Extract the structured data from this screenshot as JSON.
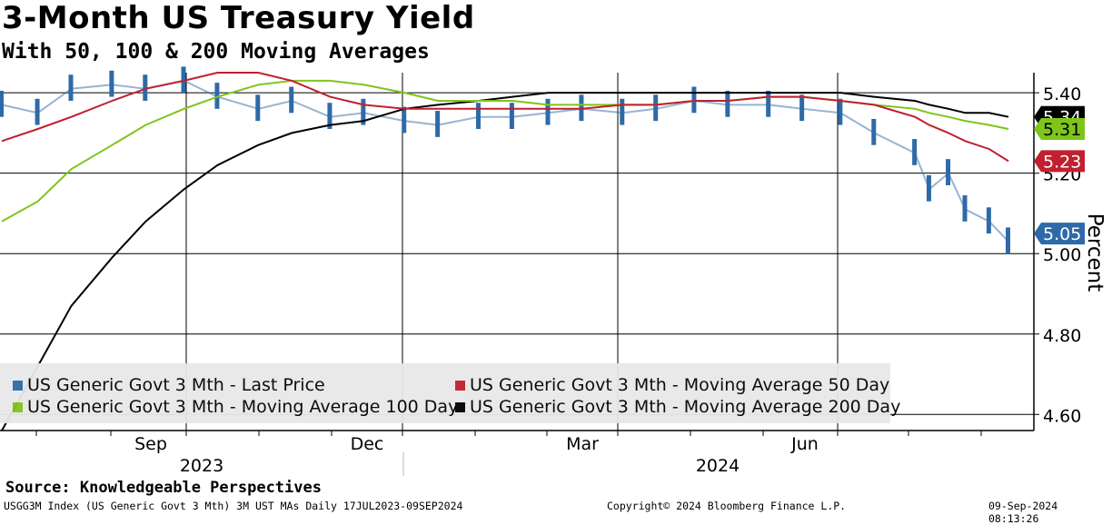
{
  "title": "3-Month US Treasury Yield",
  "subtitle": "With 50, 100 & 200 Moving Averages",
  "source": "Source: Knowledgeable Perspectives",
  "footer": {
    "left": "USGG3M Index (US Generic Govt 3 Mth) 3M UST MAs  Daily 17JUL2023-09SEP2024",
    "center": "Copyright© 2024 Bloomberg Finance L.P.",
    "right": "09-Sep-2024 08:13:26"
  },
  "colors": {
    "price": "#2e6aa8",
    "ma50": "#c0202f",
    "ma100": "#7ec51b",
    "ma200": "#000000"
  },
  "chart_data": {
    "type": "line",
    "ylabel": "Percent",
    "ylim": [
      4.56,
      5.45
    ],
    "yticks": [
      "4.60",
      "4.80",
      "5.00",
      "5.20",
      "5.40"
    ],
    "xticks": [
      "Sep",
      "Dec",
      "Mar",
      "Jun"
    ],
    "year_labels": [
      "2023",
      "2024"
    ],
    "grid": true,
    "legend_position": "bottom-left",
    "x": [
      "2023-07-17",
      "2023-08-01",
      "2023-08-15",
      "2023-09-01",
      "2023-09-15",
      "2023-10-01",
      "2023-10-15",
      "2023-11-01",
      "2023-11-15",
      "2023-12-01",
      "2023-12-15",
      "2024-01-01",
      "2024-01-15",
      "2024-02-01",
      "2024-02-15",
      "2024-03-01",
      "2024-03-15",
      "2024-04-01",
      "2024-04-15",
      "2024-05-01",
      "2024-05-15",
      "2024-06-01",
      "2024-06-15",
      "2024-07-01",
      "2024-07-15",
      "2024-08-01",
      "2024-08-07",
      "2024-08-15",
      "2024-08-22",
      "2024-09-01",
      "2024-09-09"
    ],
    "series": [
      {
        "name": "US Generic Govt 3 Mth - Last Price",
        "style": "bars",
        "values": [
          5.39,
          5.37,
          5.43,
          5.44,
          5.43,
          5.45,
          5.41,
          5.38,
          5.4,
          5.36,
          5.37,
          5.35,
          5.34,
          5.36,
          5.36,
          5.37,
          5.38,
          5.37,
          5.38,
          5.4,
          5.39,
          5.39,
          5.38,
          5.37,
          5.32,
          5.27,
          5.18,
          5.22,
          5.13,
          5.1,
          5.05
        ]
      },
      {
        "name": "US Generic Govt 3 Mth - Moving Average 50 Day",
        "values": [
          5.28,
          5.31,
          5.34,
          5.38,
          5.41,
          5.43,
          5.45,
          5.45,
          5.43,
          5.39,
          5.37,
          5.36,
          5.36,
          5.36,
          5.36,
          5.36,
          5.36,
          5.37,
          5.37,
          5.38,
          5.38,
          5.39,
          5.39,
          5.38,
          5.37,
          5.34,
          5.32,
          5.3,
          5.28,
          5.26,
          5.23
        ]
      },
      {
        "name": "US Generic Govt 3 Mth - Moving Average 100 Day",
        "values": [
          5.08,
          5.13,
          5.21,
          5.27,
          5.32,
          5.36,
          5.39,
          5.42,
          5.43,
          5.43,
          5.42,
          5.4,
          5.38,
          5.38,
          5.38,
          5.37,
          5.37,
          5.37,
          5.37,
          5.38,
          5.38,
          5.39,
          5.39,
          5.38,
          5.37,
          5.36,
          5.35,
          5.34,
          5.33,
          5.32,
          5.31
        ]
      },
      {
        "name": "US Generic Govt 3 Mth - Moving Average 200 Day",
        "values": [
          4.56,
          4.72,
          4.87,
          4.99,
          5.08,
          5.16,
          5.22,
          5.27,
          5.3,
          5.32,
          5.33,
          5.36,
          5.37,
          5.38,
          5.39,
          5.4,
          5.4,
          5.4,
          5.4,
          5.4,
          5.4,
          5.4,
          5.4,
          5.4,
          5.39,
          5.38,
          5.37,
          5.36,
          5.35,
          5.35,
          5.34
        ]
      }
    ],
    "last_values": [
      "5.34",
      "5.31",
      "5.23",
      "5.05"
    ]
  }
}
